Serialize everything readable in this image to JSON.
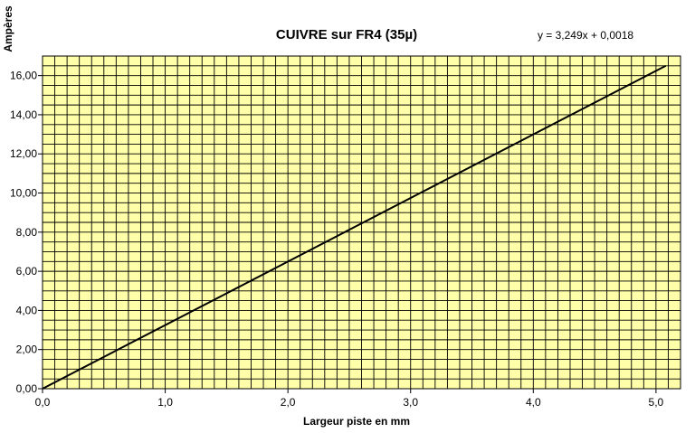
{
  "chart_data": {
    "type": "line",
    "title": "CUIVRE  sur FR4 (35µ)",
    "annotation": "y = 3,249x + 0,0018",
    "xlabel": "Largeur piste en mm",
    "ylabel": "Ampères",
    "xlim": [
      0,
      5.2
    ],
    "ylim": [
      0,
      17
    ],
    "x_ticks": [
      0,
      1,
      2,
      3,
      4,
      5
    ],
    "x_tick_labels": [
      "0,0",
      "1,0",
      "2,0",
      "3,0",
      "4,0",
      "5,0"
    ],
    "y_ticks": [
      0,
      2,
      4,
      6,
      8,
      10,
      12,
      14,
      16
    ],
    "y_tick_labels": [
      "0,00",
      "2,00",
      "4,00",
      "6,00",
      "8,00",
      "10,00",
      "12,00",
      "14,00",
      "16,00"
    ],
    "grid": true,
    "legend": "none",
    "series": [
      {
        "x": [
          0,
          5.08
        ],
        "y": [
          0.0018,
          16.505
        ]
      }
    ],
    "colors": {
      "plot_background": "#FFFFAA",
      "grid": "#000000",
      "line": "#000000"
    }
  }
}
